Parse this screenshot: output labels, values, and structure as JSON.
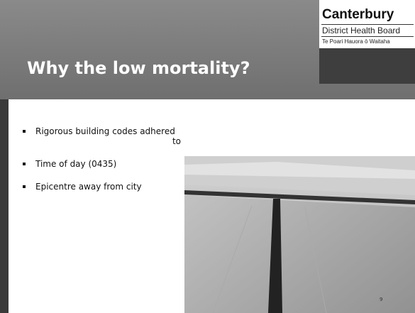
{
  "header": {
    "title": "Why the low mortality?"
  },
  "logo": {
    "name": "Canterbury",
    "subtitle": "District Health Board",
    "maori": "Te Poari Hauora ō Waitaha"
  },
  "bullets": [
    "Rigorous building codes adhered to",
    "Time of day (0435)",
    "Epicentre away from city"
  ],
  "page_number": "9"
}
